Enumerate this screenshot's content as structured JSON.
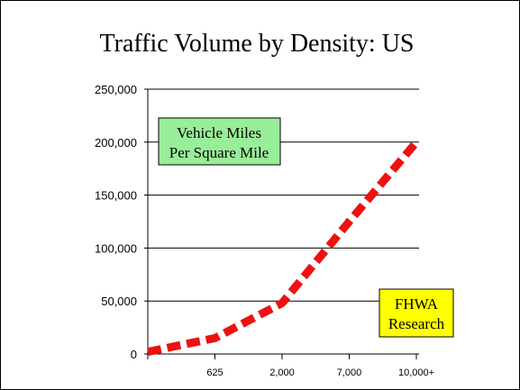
{
  "chart_data": {
    "type": "line",
    "title": "Traffic Volume by Density: US",
    "xlabel": "",
    "ylabel": "",
    "categories": [
      "",
      "625",
      "2,000",
      "7,000",
      "10,000+"
    ],
    "x": [
      0,
      1,
      2,
      3,
      4
    ],
    "series": [
      {
        "values": [
          2000,
          15000,
          48000,
          125000,
          200000
        ]
      }
    ],
    "ylim": [
      0,
      250000
    ],
    "yticks": [
      0,
      50000,
      100000,
      150000,
      200000,
      250000
    ],
    "ytick_labels": [
      "0",
      "50,000",
      "100,000",
      "150,000",
      "200,000",
      "250,000"
    ],
    "grid": true,
    "annotations": {
      "measure_box": {
        "line1": "Vehicle Miles",
        "line2": "Per Square Mile",
        "color": "#99ee99"
      },
      "source_box": {
        "line1": "FHWA",
        "line2": "Research",
        "color": "#ffff00"
      }
    },
    "line_color": "#ee1111"
  }
}
